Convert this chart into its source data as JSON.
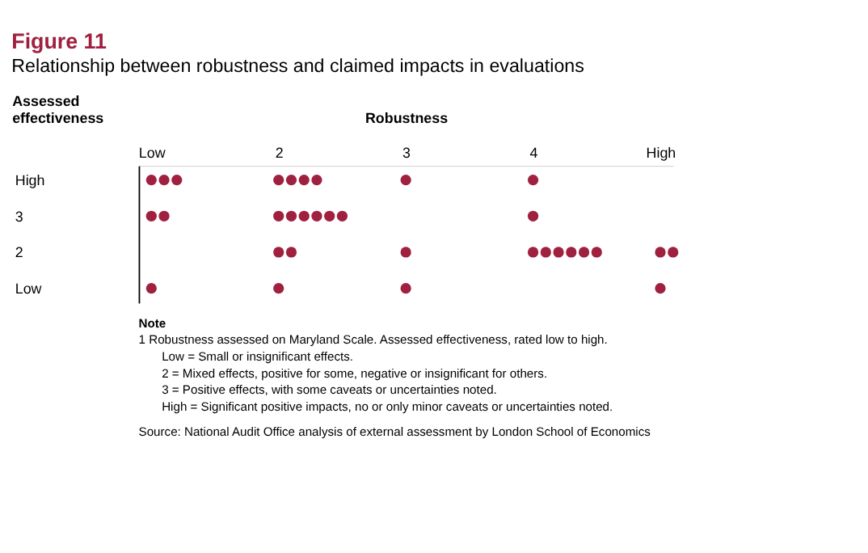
{
  "chart_data": {
    "type": "scatter",
    "title": "Figure 11",
    "subtitle": "Relationship between robustness and claimed impacts in evaluations",
    "xlabel": "Robustness",
    "ylabel": "Assessed effectiveness",
    "xlim": [
      0.9,
      5.1
    ],
    "ylim": [
      0.6,
      4.4
    ],
    "xticks": [
      {
        "value": 1,
        "label": "Low"
      },
      2,
      3,
      4,
      {
        "value": 5,
        "label": "High"
      }
    ],
    "yticks": [
      {
        "value": 1,
        "label": "Low"
      },
      2,
      3,
      {
        "value": 4,
        "label": "High"
      }
    ],
    "grid": false,
    "series": [
      {
        "color": "#a0213f",
        "x": [
          1,
          1.1,
          1.2,
          2,
          2.1,
          2.2,
          2.3,
          3,
          4,
          1,
          1.1,
          2,
          2.1,
          2.2,
          2.3,
          2.4,
          2.5,
          4,
          2,
          2.1,
          3,
          4,
          4.1,
          4.2,
          4.3,
          4.4,
          4.5,
          5,
          5.1,
          1,
          2,
          3,
          5
        ],
        "values": [
          4,
          4,
          4,
          4,
          4,
          4,
          4,
          4,
          4,
          3,
          3,
          3,
          3,
          3,
          3,
          3,
          3,
          3,
          2,
          2,
          2,
          2,
          2,
          2,
          2,
          2,
          2,
          2,
          2,
          1,
          1,
          1,
          1
        ]
      }
    ],
    "annotations": [
      "Note",
      "1     Robustness assessed on Maryland Scale. Assessed effectiveness, rated low to high.",
      "Low   =  Small or insignificant effects.",
      "2       =  Mixed effects, positive for some, negative or insignificant for others.",
      "3       =  Positive effects, with some caveats or uncertainties noted.",
      "High  =  Significant positive impacts, no or only minor caveats or uncertainties noted.",
      "Source: National Audit Office analysis of external assessment by London School of Economics"
    ]
  }
}
